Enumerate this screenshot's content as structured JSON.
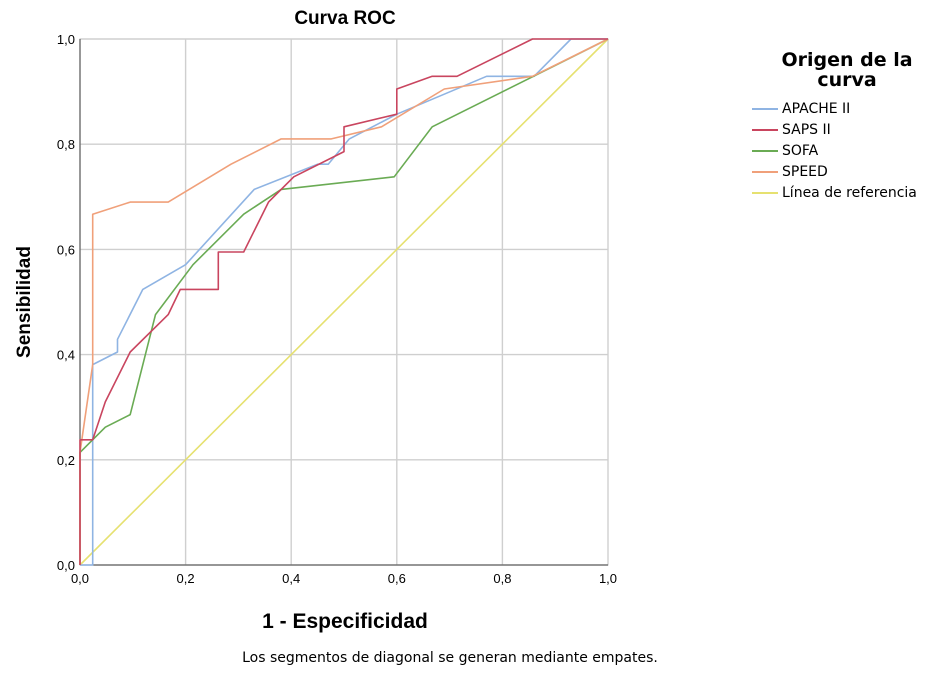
{
  "chart_data": {
    "type": "line",
    "title": "Curva ROC",
    "xlabel": "1 - Especificidad",
    "ylabel": "Sensibilidad",
    "xlim": [
      0,
      1
    ],
    "ylim": [
      0,
      1
    ],
    "xticks": [
      "0,0",
      "0,2",
      "0,4",
      "0,6",
      "0,8",
      "1,0"
    ],
    "yticks": [
      "0,0",
      "0,2",
      "0,4",
      "0,6",
      "0,8",
      "1,0"
    ],
    "grid": true,
    "legend_title": "Origen de la curva",
    "legend_placement": "right",
    "footnote": "Los segmentos de diagonal se generan mediante empates.",
    "series": [
      {
        "name": "APACHE II",
        "color": "#8fb4e3",
        "x": [
          0,
          0.024,
          0.024,
          0.071,
          0.071,
          0.119,
          0.2,
          0.33,
          0.45,
          0.47,
          0.51,
          0.6,
          0.77,
          0.86,
          0.93,
          1.0
        ],
        "y": [
          0,
          0,
          0.381,
          0.405,
          0.429,
          0.524,
          0.571,
          0.714,
          0.762,
          0.762,
          0.81,
          0.857,
          0.929,
          0.929,
          1.0,
          1.0
        ]
      },
      {
        "name": "SAPS II",
        "color": "#c9455f",
        "x": [
          0,
          0,
          0.024,
          0.048,
          0.095,
          0.167,
          0.19,
          0.262,
          0.262,
          0.31,
          0.357,
          0.405,
          0.5,
          0.5,
          0.6,
          0.6,
          0.667,
          0.714,
          0.857,
          1.0
        ],
        "y": [
          0,
          0.238,
          0.238,
          0.31,
          0.405,
          0.476,
          0.524,
          0.524,
          0.595,
          0.595,
          0.69,
          0.738,
          0.786,
          0.833,
          0.857,
          0.905,
          0.929,
          0.929,
          1.0,
          1.0
        ]
      },
      {
        "name": "SOFA",
        "color": "#6aab54",
        "x": [
          0,
          0,
          0.048,
          0.095,
          0.143,
          0.214,
          0.31,
          0.381,
          0.595,
          0.667,
          0.905,
          1.0
        ],
        "y": [
          0,
          0.214,
          0.262,
          0.286,
          0.476,
          0.571,
          0.667,
          0.714,
          0.738,
          0.833,
          0.952,
          1.0
        ]
      },
      {
        "name": "SPEED",
        "color": "#f0a07a",
        "x": [
          0,
          0,
          0.024,
          0.024,
          0.095,
          0.167,
          0.286,
          0.381,
          0.476,
          0.571,
          0.69,
          0.857,
          1.0
        ],
        "y": [
          0,
          0.214,
          0.381,
          0.667,
          0.69,
          0.69,
          0.762,
          0.81,
          0.81,
          0.833,
          0.905,
          0.929,
          1.0
        ]
      },
      {
        "name": "Línea de referencia",
        "color": "#e6e170",
        "x": [
          0,
          1
        ],
        "y": [
          0,
          1
        ]
      }
    ]
  }
}
